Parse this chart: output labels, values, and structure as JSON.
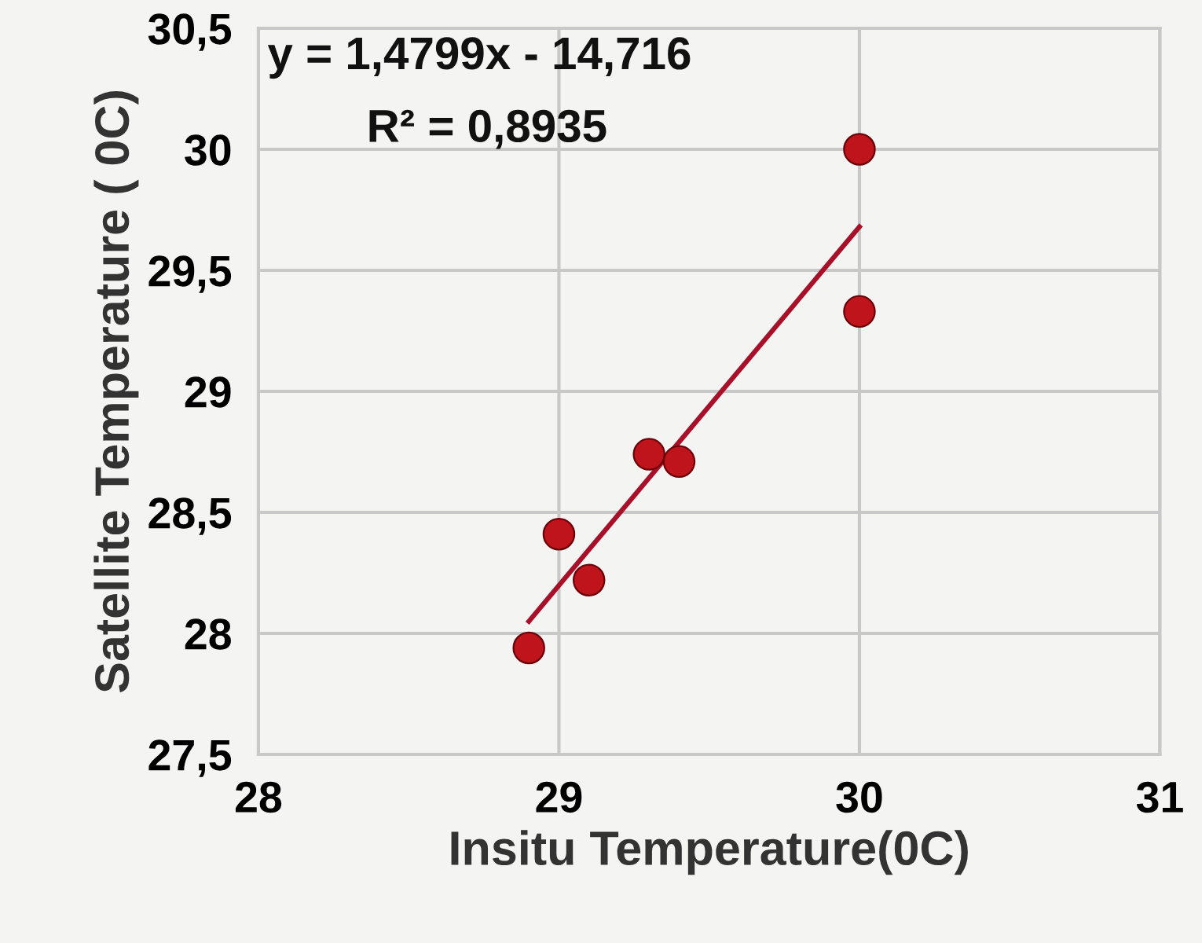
{
  "chart_data": {
    "type": "scatter",
    "xlabel": "Insitu Temperature(0C)",
    "ylabel": "Satellite Temperature ( 0C)",
    "series": [
      {
        "color": "#c0141c",
        "marker": "circle",
        "x": [
          28.9,
          29.0,
          29.1,
          29.3,
          29.4,
          30.0,
          30.0
        ],
        "values": [
          27.94,
          28.41,
          28.22,
          28.74,
          28.71,
          30.0,
          29.33
        ]
      },
      {
        "type": "line",
        "line_style": "solid",
        "color": "#a8102a",
        "x": [
          28.9,
          30.0
        ],
        "values": [
          28.05,
          29.68
        ]
      }
    ],
    "annotations": [
      "y = 1,4799x - 14,716",
      "R² = 0,8935"
    ],
    "xlim": [
      28,
      31
    ],
    "xticks": [
      28,
      29,
      30,
      31
    ],
    "ylim": [
      27.5,
      30.5
    ],
    "yticks": [
      {
        "value": 27.5,
        "label": "27,5"
      },
      28,
      {
        "value": 28.5,
        "label": "28,5"
      },
      29,
      {
        "value": 29.5,
        "label": "29,5"
      },
      30,
      {
        "value": 30.5,
        "label": "30,5"
      }
    ],
    "grid": true
  }
}
